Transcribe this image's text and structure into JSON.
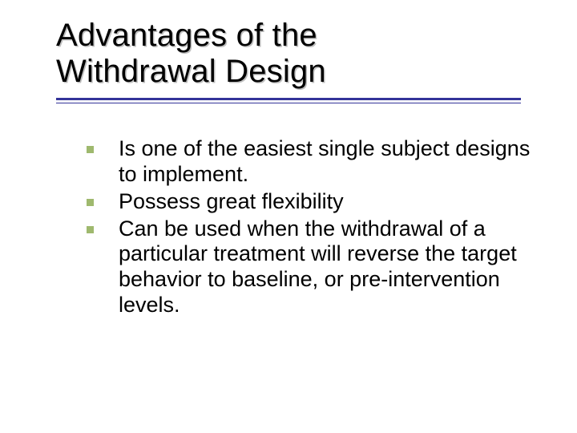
{
  "slide": {
    "title_line1": "Advantages of the",
    "title_line2": "Withdrawal Design",
    "title_color": "#000000",
    "title_shadow": "#bfbfbf",
    "title_fontsize": 40,
    "underline_color": "#333399",
    "bullet_color": "#9fb96e",
    "body_fontsize": 27,
    "background_color": "#ffffff",
    "items": [
      {
        "text": "Is one of the easiest single subject designs to implement."
      },
      {
        "text": "Possess great flexibility"
      },
      {
        "text": "Can be used when the withdrawal of a particular treatment will reverse the target behavior to baseline, or pre-intervention levels."
      }
    ]
  }
}
